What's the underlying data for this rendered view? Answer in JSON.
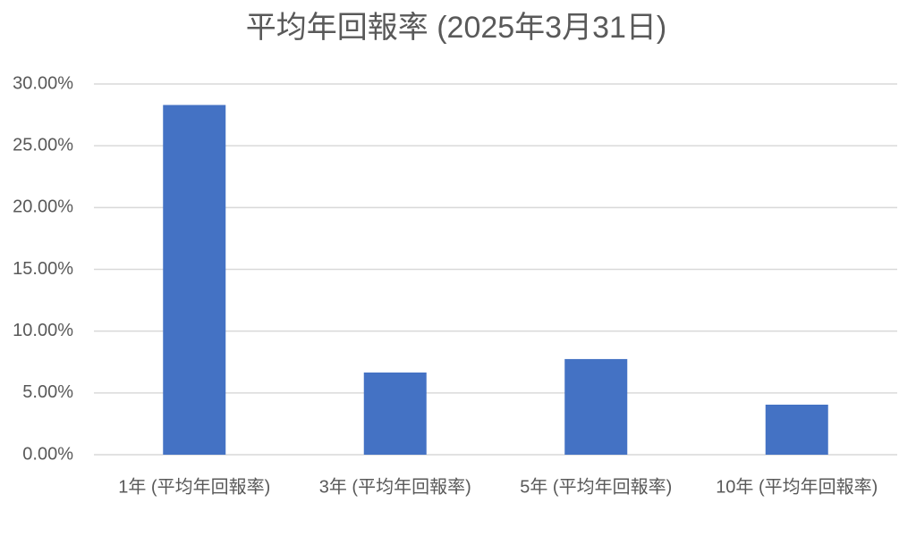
{
  "chart_data": {
    "type": "bar",
    "title": "平均年回報率 (2025年3月31日)",
    "categories": [
      "1年 (平均年回報率)",
      "3年 (平均年回報率)",
      "5年 (平均年回報率)",
      "10年 (平均年回報率)"
    ],
    "values": [
      28.3,
      6.65,
      7.74,
      4.05
    ],
    "color": "#4472c4",
    "ylim": [
      0,
      30
    ],
    "yticks": [
      {
        "value": 0,
        "label": "0.00%"
      },
      {
        "value": 5,
        "label": "5.00%"
      },
      {
        "value": 10,
        "label": "10.00%"
      },
      {
        "value": 15,
        "label": "15.00%"
      },
      {
        "value": 20,
        "label": "20.00%"
      },
      {
        "value": 25,
        "label": "25.00%"
      },
      {
        "value": 30,
        "label": "30.00%"
      }
    ],
    "grid": true
  }
}
